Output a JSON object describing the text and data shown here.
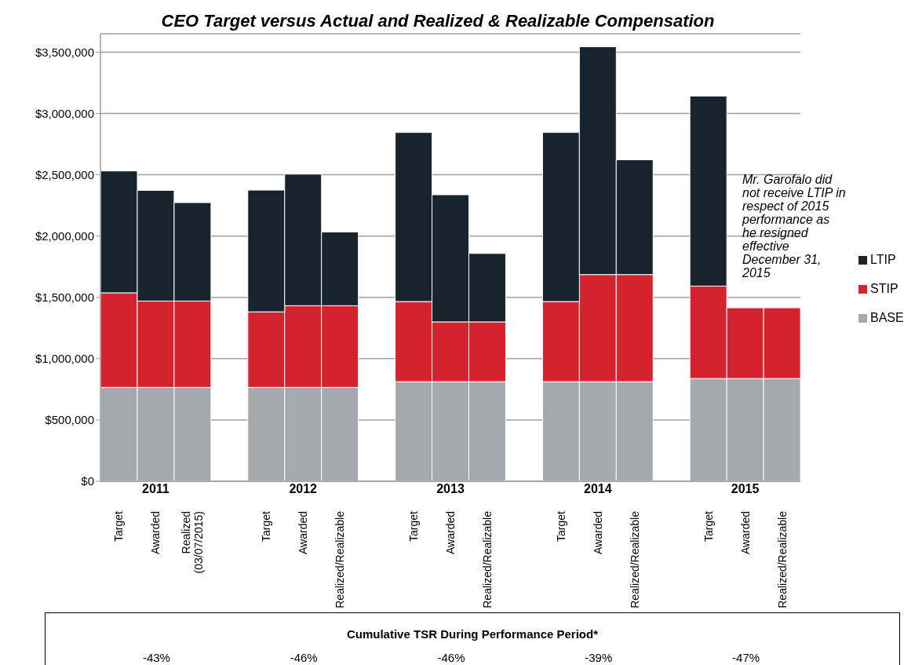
{
  "chart_data": {
    "type": "bar",
    "title": "CEO Target versus Actual and Realized & Realizable Compensation",
    "categories": [
      "Target",
      "Awarded",
      "Realized (03/07/2015)",
      null,
      "Target",
      "Awarded",
      "Realized/Realizable",
      null,
      "Target",
      "Awarded",
      "Realized/Realizable",
      null,
      "Target",
      "Awarded",
      "Realized/Realizable",
      null,
      "Target",
      "Awarded",
      "Realized/Realizable"
    ],
    "stacked": true,
    "series": [
      {
        "name": "BASE",
        "color": "#a3a9ac",
        "values": [
          766000,
          766000,
          766000,
          null,
          766000,
          766000,
          766000,
          null,
          812000,
          812000,
          812000,
          null,
          812000,
          812000,
          812000,
          null,
          838000,
          838000,
          838000
        ]
      },
      {
        "name": "STIP",
        "color": "#d2232f",
        "values": [
          771000,
          704000,
          704000,
          null,
          616000,
          666000,
          666000,
          null,
          654000,
          488000,
          488000,
          null,
          654000,
          874000,
          874000,
          null,
          754000,
          577000,
          577000
        ]
      },
      {
        "name": "LTIP",
        "color": "#17242e",
        "values": [
          994000,
          903000,
          803000,
          null,
          993000,
          1073000,
          601000,
          null,
          1379000,
          1037000,
          558000,
          null,
          1379000,
          1858000,
          936000,
          null,
          1550000,
          null,
          null
        ]
      }
    ],
    "ylim": [
      0,
      3650000
    ],
    "yticks": [
      {
        "value": 0,
        "label": "$0"
      },
      {
        "value": 500000,
        "label": "$500,000"
      },
      {
        "value": 1000000,
        "label": "$1,000,000"
      },
      {
        "value": 1500000,
        "label": "$1,500,000"
      },
      {
        "value": 2000000,
        "label": "$2,000,000"
      },
      {
        "value": 2500000,
        "label": "$2,500,000"
      },
      {
        "value": 3000000,
        "label": "$3,000,000"
      },
      {
        "value": 3500000,
        "label": "$3,500,000"
      }
    ],
    "grid": "y",
    "legend": "right",
    "annotations": [
      "2011",
      "2012",
      "2013",
      "2014",
      "2015",
      "Mr. Garofalo did not receive LTIP in respect of 2015 performance as he resigned effective December 31, 2015",
      "Cumulative TSR During Performance Period*",
      "-43%",
      "-46%",
      "-46%",
      "-39%",
      "-47%"
    ]
  }
}
